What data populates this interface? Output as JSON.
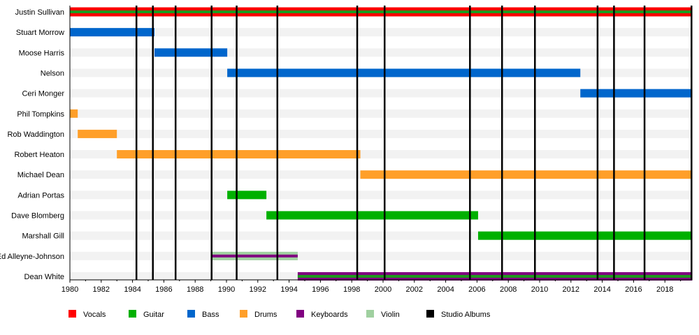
{
  "chart_data": {
    "type": "timeline",
    "title": "",
    "xlim": [
      1980,
      2019.75
    ],
    "x_ticks": [
      1980,
      1982,
      1984,
      1986,
      1988,
      1990,
      1992,
      1994,
      1996,
      1998,
      2000,
      2002,
      2004,
      2006,
      2008,
      2010,
      2012,
      2014,
      2016,
      2018
    ],
    "colors": {
      "Vocals": "#ff0000",
      "Guitar": "#00b000",
      "Bass": "#0066cc",
      "Drums": "#ff9f29",
      "Keyboards": "#800080",
      "Violin": "#a0d0a0",
      "Studio Albums": "#000000"
    },
    "members": [
      {
        "name": "Justin Sullivan",
        "start": 1980,
        "end": 2019.75,
        "role": "Vocals",
        "stripe": "Guitar"
      },
      {
        "name": "Stuart Morrow",
        "start": 1980,
        "end": 1985.4,
        "role": "Bass"
      },
      {
        "name": "Moose Harris",
        "start": 1985.4,
        "end": 1990.05,
        "role": "Bass"
      },
      {
        "name": "Nelson",
        "start": 1990.05,
        "end": 2012.6,
        "role": "Bass"
      },
      {
        "name": "Ceri Monger",
        "start": 2012.6,
        "end": 2019.75,
        "role": "Bass"
      },
      {
        "name": "Phil Tompkins",
        "start": 1980,
        "end": 1980.5,
        "role": "Drums"
      },
      {
        "name": "Rob Waddington",
        "start": 1980.5,
        "end": 1983,
        "role": "Drums"
      },
      {
        "name": "Robert Heaton",
        "start": 1983,
        "end": 1998.55,
        "role": "Drums"
      },
      {
        "name": "Michael Dean",
        "start": 1998.55,
        "end": 2019.75,
        "role": "Drums"
      },
      {
        "name": "Adrian Portas",
        "start": 1990.05,
        "end": 1992.55,
        "role": "Guitar"
      },
      {
        "name": "Dave Blomberg",
        "start": 1992.55,
        "end": 2006.07,
        "role": "Guitar"
      },
      {
        "name": "Marshall Gill",
        "start": 2006.07,
        "end": 2019.75,
        "role": "Guitar"
      },
      {
        "name": "Ed Alleyne-Johnson",
        "start": 1989,
        "end": 1994.55,
        "role": "Violin",
        "stripe": "Keyboards"
      },
      {
        "name": "Dean White",
        "start": 1994.55,
        "end": 2019.75,
        "role": "Keyboards",
        "stripe": "Guitar"
      }
    ],
    "albums": [
      1984.25,
      1985.3,
      1986.75,
      1989.05,
      1990.65,
      1993.25,
      1998.35,
      2000.1,
      2005.55,
      2007.6,
      2009.7,
      2013.7,
      2014.75,
      2016.7,
      2019.7
    ],
    "legend": [
      "Vocals",
      "Guitar",
      "Bass",
      "Drums",
      "Keyboards",
      "Violin",
      "Studio Albums"
    ],
    "legend_placement": "bottom"
  }
}
